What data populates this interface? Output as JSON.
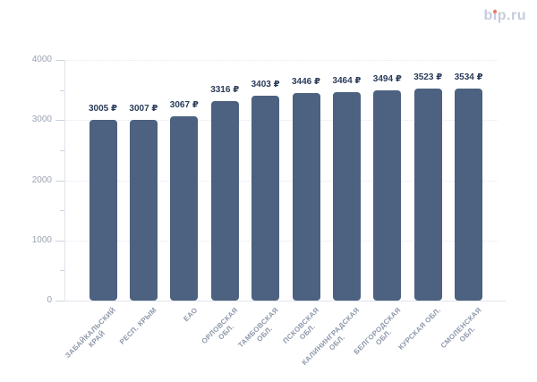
{
  "logo": {
    "pre": "b",
    "i": "i",
    "post": "p.ru",
    "text_color": "#c7cbdf",
    "dot_color": "#f0765a"
  },
  "chart_data": {
    "type": "bar",
    "title": "",
    "xlabel": "",
    "ylabel": "",
    "categories": [
      [
        "ЗАБАЙКАЛЬСКИЙ",
        "КРАЙ"
      ],
      [
        "РЕСП. КРЫМ"
      ],
      [
        "ЕАО"
      ],
      [
        "ОРЛОВСКАЯ",
        "ОБЛ."
      ],
      [
        "ТАМБОВСКАЯ",
        "ОБЛ."
      ],
      [
        "ПСКОВСКАЯ",
        "ОБЛ."
      ],
      [
        "КАЛИНИНГРАДСКАЯ",
        "ОБЛ."
      ],
      [
        "БЕЛГОРОДСКАЯ",
        "ОБЛ."
      ],
      [
        "КУРСКАЯ ОБЛ."
      ],
      [
        "СМОЛЕНСКАЯ",
        "ОБЛ."
      ]
    ],
    "values": [
      3005,
      3007,
      3067,
      3316,
      3403,
      3446,
      3464,
      3494,
      3523,
      3534
    ],
    "value_labels": [
      "3005 ₽",
      "3007 ₽",
      "3067 ₽",
      "3316 ₽",
      "3403 ₽",
      "3446 ₽",
      "3464 ₽",
      "3494 ₽",
      "3523 ₽",
      "3534 ₽"
    ],
    "ylim": [
      0,
      4000
    ],
    "yticks": [
      0,
      1000,
      2000,
      3000,
      4000
    ],
    "ytick_labels": [
      "0",
      "1000",
      "2000",
      "3000",
      "4000"
    ],
    "minor_tick_step": 500,
    "grid": "horizontal-dotted",
    "legend": "none",
    "bar_color": "#4d6180",
    "value_label_color": "#2b3c5a",
    "ytick_label_color": "#9aa3b2",
    "category_label_color": "#8d98aa",
    "gridline_color": "#e4e7ee",
    "axis_color": "#e0e4eb"
  }
}
